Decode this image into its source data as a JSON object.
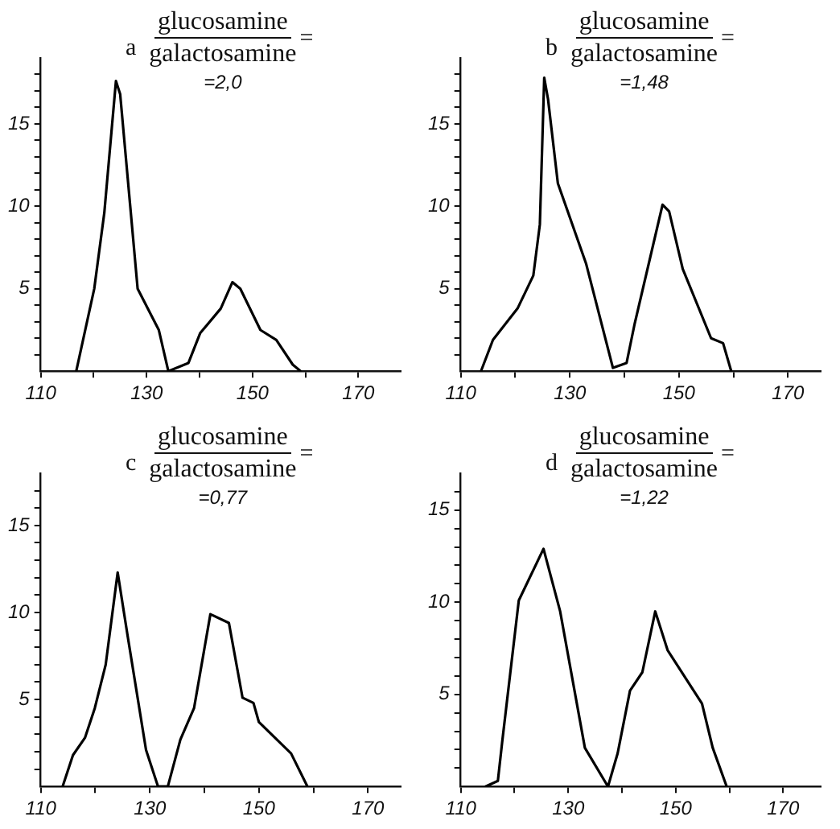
{
  "chart_data": [
    {
      "type": "line",
      "title": "a",
      "annotations": [
        "glucosamine",
        "galactosamine",
        "=",
        "=2,0"
      ],
      "xlim": [
        110,
        178
      ],
      "ylim": [
        0,
        19
      ],
      "marker": "none",
      "line_style": "solid",
      "grid": false,
      "legend": false,
      "xticks": [
        110,
        {
          "value": 120,
          "label": null
        },
        130,
        {
          "value": 140,
          "label": null
        },
        150,
        {
          "value": 160,
          "label": null
        },
        170
      ],
      "yticks": [
        {
          "value": 1,
          "label": null
        },
        {
          "value": 2,
          "label": null
        },
        {
          "value": 3,
          "label": null
        },
        {
          "value": 4,
          "label": null
        },
        5,
        {
          "value": 6,
          "label": null
        },
        {
          "value": 7,
          "label": null
        },
        {
          "value": 8,
          "label": null
        },
        {
          "value": 9,
          "label": null
        },
        10,
        {
          "value": 11,
          "label": null
        },
        {
          "value": 12,
          "label": null
        },
        {
          "value": 13,
          "label": null
        },
        {
          "value": 14,
          "label": null
        },
        15,
        {
          "value": 16,
          "label": null
        },
        {
          "value": 17,
          "label": null
        },
        {
          "value": 18,
          "label": null
        }
      ],
      "series": [
        {
          "color": "#000000",
          "x": [
            116.7,
            120.1,
            122,
            124.2,
            125,
            128.3,
            132.3,
            134.1,
            137.9,
            140.1,
            144,
            146.2,
            147.7,
            151.5,
            154.5,
            157.6,
            159.1
          ],
          "values": [
            0,
            5,
            9.6,
            17.6,
            16.8,
            5,
            2.5,
            0,
            0.5,
            2.3,
            3.8,
            5.4,
            5,
            2.5,
            1.9,
            0.4,
            0
          ]
        }
      ]
    },
    {
      "type": "line",
      "title": "b",
      "annotations": [
        "glucosamine",
        "galactosamine",
        "=",
        "=1,48"
      ],
      "xlim": [
        110,
        176
      ],
      "ylim": [
        0,
        19
      ],
      "marker": "none",
      "line_style": "solid",
      "grid": false,
      "legend": false,
      "xticks": [
        110,
        {
          "value": 120,
          "label": null
        },
        130,
        {
          "value": 140,
          "label": null
        },
        150,
        {
          "value": 160,
          "label": null
        },
        170
      ],
      "yticks": [
        {
          "value": 1,
          "label": null
        },
        {
          "value": 2,
          "label": null
        },
        {
          "value": 3,
          "label": null
        },
        {
          "value": 4,
          "label": null
        },
        5,
        {
          "value": 6,
          "label": null
        },
        {
          "value": 7,
          "label": null
        },
        {
          "value": 8,
          "label": null
        },
        {
          "value": 9,
          "label": null
        },
        10,
        {
          "value": 11,
          "label": null
        },
        {
          "value": 12,
          "label": null
        },
        {
          "value": 13,
          "label": null
        },
        {
          "value": 14,
          "label": null
        },
        15,
        {
          "value": 16,
          "label": null
        },
        {
          "value": 17,
          "label": null
        },
        {
          "value": 18,
          "label": null
        }
      ],
      "series": [
        {
          "color": "#000000",
          "x": [
            113.7,
            115.9,
            120.4,
            123.3,
            124.5,
            125.3,
            126,
            127.8,
            133,
            137.9,
            140.4,
            141.9,
            147,
            148.2,
            150.7,
            155.9,
            158.1,
            159.6
          ],
          "values": [
            0,
            1.9,
            3.8,
            5.8,
            8.9,
            17.8,
            16.5,
            11.4,
            6.5,
            0.2,
            0.5,
            2.9,
            10.1,
            9.7,
            6.2,
            2,
            1.7,
            0
          ]
        }
      ]
    },
    {
      "type": "line",
      "title": "c",
      "annotations": [
        "glucosamine",
        "galactosamine",
        "=",
        "=0,77"
      ],
      "xlim": [
        110,
        176
      ],
      "ylim": [
        0,
        18
      ],
      "marker": "none",
      "line_style": "solid",
      "grid": false,
      "legend": false,
      "xticks": [
        110,
        {
          "value": 120,
          "label": null
        },
        130,
        {
          "value": 140,
          "label": null
        },
        150,
        {
          "value": 160,
          "label": null
        },
        170
      ],
      "yticks": [
        {
          "value": 1,
          "label": null
        },
        {
          "value": 2,
          "label": null
        },
        {
          "value": 3,
          "label": null
        },
        {
          "value": 4,
          "label": null
        },
        5,
        {
          "value": 6,
          "label": null
        },
        {
          "value": 7,
          "label": null
        },
        {
          "value": 8,
          "label": null
        },
        {
          "value": 9,
          "label": null
        },
        10,
        {
          "value": 11,
          "label": null
        },
        {
          "value": 12,
          "label": null
        },
        {
          "value": 13,
          "label": null
        },
        {
          "value": 14,
          "label": null
        },
        15,
        {
          "value": 16,
          "label": null
        },
        {
          "value": 17,
          "label": null
        }
      ],
      "series": [
        {
          "color": "#000000",
          "x": [
            114,
            115.9,
            118.1,
            119.9,
            121.9,
            124.1,
            125.9,
            129.3,
            131.5,
            133.3,
            135.6,
            138.1,
            141.1,
            144.5,
            147,
            149,
            150,
            155.9,
            158.9
          ],
          "values": [
            0,
            1.8,
            2.8,
            4.5,
            7,
            12.3,
            8.7,
            2.1,
            0,
            0,
            2.7,
            4.5,
            9.9,
            9.4,
            5.1,
            4.8,
            3.7,
            1.9,
            0
          ]
        }
      ]
    },
    {
      "type": "line",
      "title": "d",
      "annotations": [
        "glucosamine",
        "galactosamine",
        "=",
        "=1,22"
      ],
      "xlim": [
        110,
        177
      ],
      "ylim": [
        0,
        17
      ],
      "marker": "none",
      "line_style": "solid",
      "grid": false,
      "legend": false,
      "xticks": [
        110,
        {
          "value": 120,
          "label": null
        },
        130,
        {
          "value": 140,
          "label": null
        },
        150,
        {
          "value": 160,
          "label": null
        },
        170
      ],
      "yticks": [
        {
          "value": 1,
          "label": null
        },
        {
          "value": 2,
          "label": null
        },
        {
          "value": 3,
          "label": null
        },
        {
          "value": 4,
          "label": null
        },
        5,
        {
          "value": 6,
          "label": null
        },
        {
          "value": 7,
          "label": null
        },
        {
          "value": 8,
          "label": null
        },
        {
          "value": 9,
          "label": null
        },
        10,
        {
          "value": 11,
          "label": null
        },
        {
          "value": 12,
          "label": null
        },
        {
          "value": 13,
          "label": null
        },
        {
          "value": 14,
          "label": null
        },
        15,
        {
          "value": 16,
          "label": null
        }
      ],
      "series": [
        {
          "color": "#000000",
          "x": [
            114.6,
            116.9,
            117.7,
            120.8,
            125.4,
            128.5,
            133.1,
            137.4,
            139.2,
            141.5,
            143.8,
            146.2,
            148.5,
            154.9,
            156.9,
            159.5
          ],
          "values": [
            0,
            0.3,
            2.4,
            10.1,
            12.9,
            9.5,
            2.1,
            0,
            1.8,
            5.2,
            6.2,
            9.5,
            7.4,
            4.5,
            2.1,
            0
          ]
        }
      ]
    }
  ]
}
